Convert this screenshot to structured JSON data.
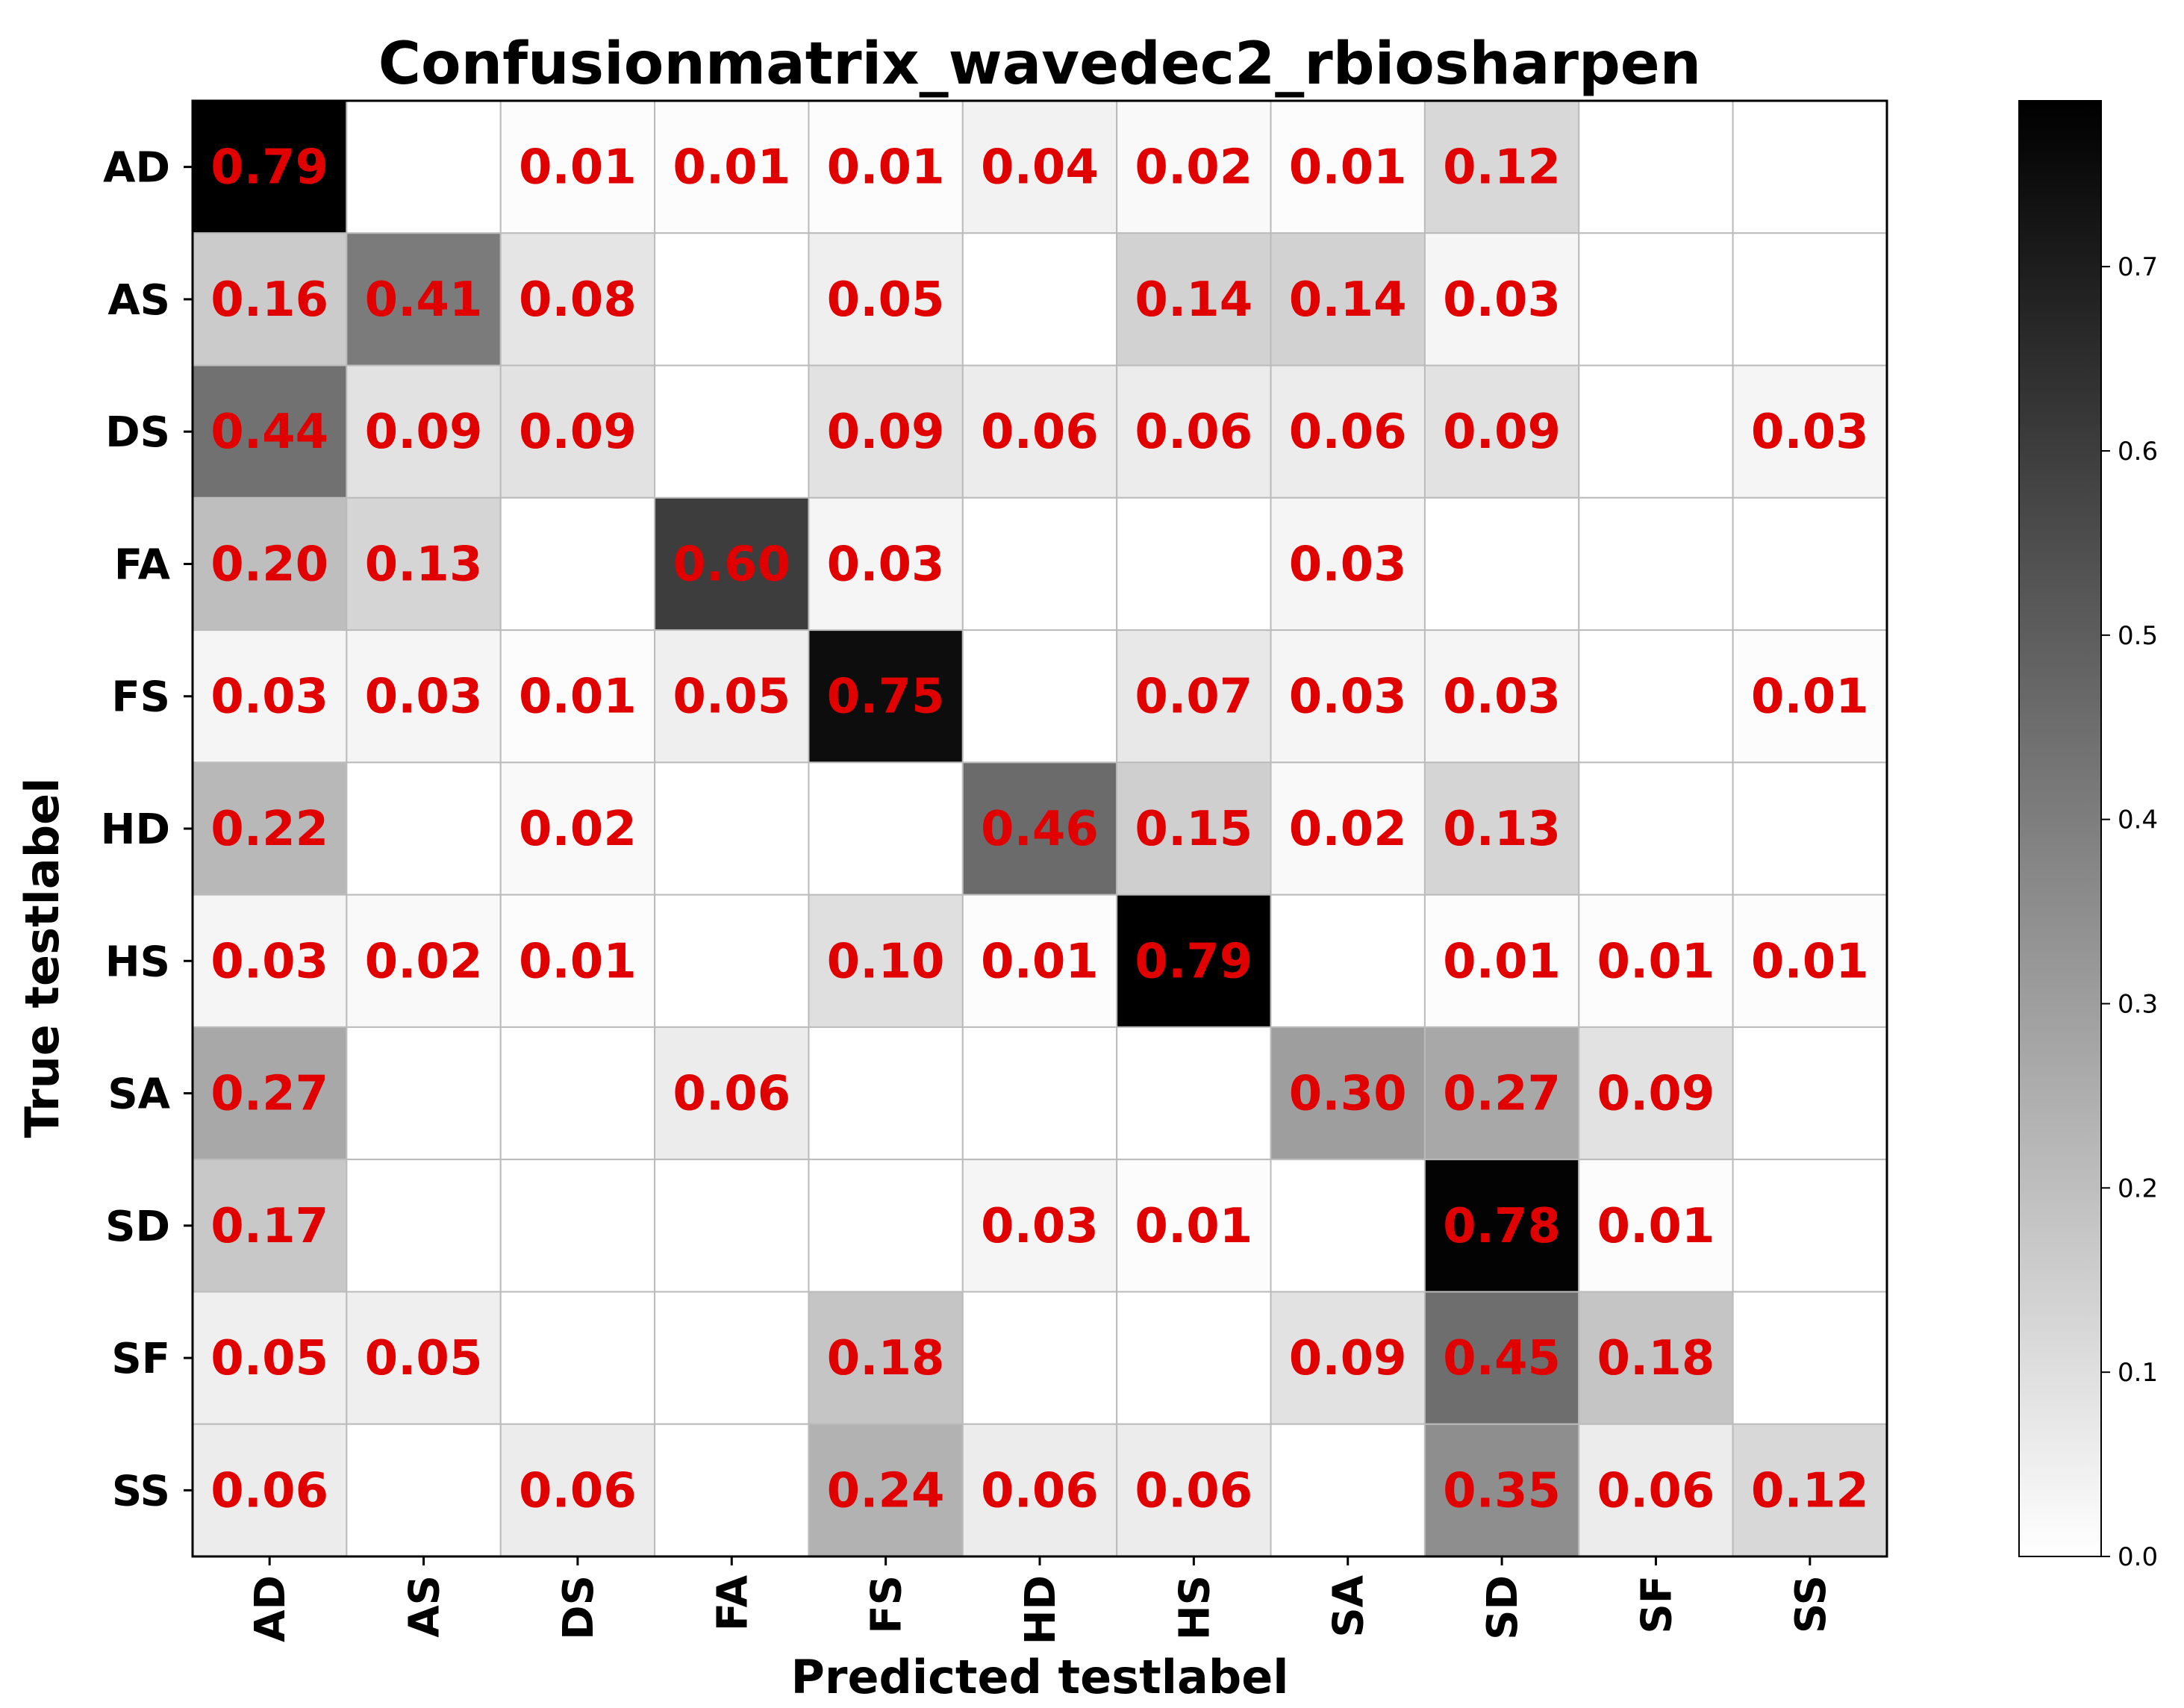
{
  "chart_data": {
    "type": "heatmap",
    "title": "Confusionmatrix_wavedec2_rbiosharpen",
    "xlabel": "Predicted testlabel",
    "ylabel": "True  testlabel",
    "x_categories": [
      "AD",
      "AS",
      "DS",
      "FA",
      "FS",
      "HD",
      "HS",
      "SA",
      "SD",
      "SF",
      "SS"
    ],
    "y_categories": [
      "AD",
      "AS",
      "DS",
      "FA",
      "FS",
      "HD",
      "HS",
      "SA",
      "SD",
      "SF",
      "SS"
    ],
    "values": [
      [
        0.79,
        null,
        0.01,
        0.01,
        0.01,
        0.04,
        0.02,
        0.01,
        0.12,
        null,
        null
      ],
      [
        0.16,
        0.41,
        0.08,
        null,
        0.05,
        null,
        0.14,
        0.14,
        0.03,
        null,
        null
      ],
      [
        0.44,
        0.09,
        0.09,
        null,
        0.09,
        0.06,
        0.06,
        0.06,
        0.09,
        null,
        0.03
      ],
      [
        0.2,
        0.13,
        null,
        0.6,
        0.03,
        null,
        null,
        0.03,
        null,
        null,
        null
      ],
      [
        0.03,
        0.03,
        0.01,
        0.05,
        0.75,
        null,
        0.07,
        0.03,
        0.03,
        null,
        0.01
      ],
      [
        0.22,
        null,
        0.02,
        null,
        null,
        0.46,
        0.15,
        0.02,
        0.13,
        null,
        null
      ],
      [
        0.03,
        0.02,
        0.01,
        null,
        0.1,
        0.01,
        0.79,
        null,
        0.01,
        0.01,
        0.01
      ],
      [
        0.27,
        null,
        null,
        0.06,
        null,
        null,
        null,
        0.3,
        0.27,
        0.09,
        null
      ],
      [
        0.17,
        null,
        null,
        null,
        null,
        0.03,
        0.01,
        null,
        0.78,
        0.01,
        null
      ],
      [
        0.05,
        0.05,
        null,
        null,
        0.18,
        null,
        null,
        0.09,
        0.45,
        0.18,
        null
      ],
      [
        0.06,
        null,
        0.06,
        null,
        0.24,
        0.06,
        0.06,
        null,
        0.35,
        0.06,
        0.12
      ]
    ],
    "colorbar": {
      "range": [
        0.0,
        0.79
      ],
      "ticks": [
        "0.0",
        "0.1",
        "0.2",
        "0.3",
        "0.4",
        "0.5",
        "0.6",
        "0.7"
      ],
      "colormap": "white-to-black"
    },
    "grid": true,
    "cell_text_color": "#e00000",
    "grid_color": "#bbbbbb"
  }
}
